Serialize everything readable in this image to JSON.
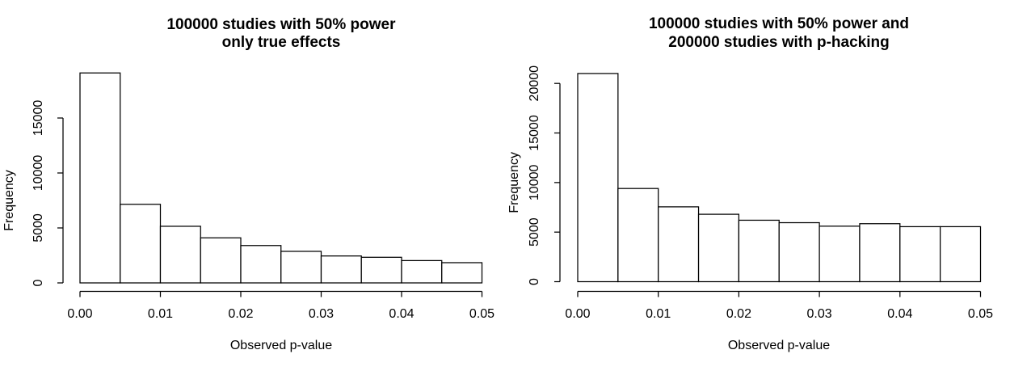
{
  "figure": {
    "background": "#ffffff",
    "line_color": "#000000",
    "text_color": "#000000",
    "bar_fill": "#ffffff"
  },
  "chart_data": [
    {
      "type": "bar",
      "subtype": "histogram",
      "title_lines": [
        "100000 studies with 50% power",
        "only true effects"
      ],
      "xlabel": "Observed p-value",
      "ylabel": "Frequency",
      "xlim": [
        0,
        0.05
      ],
      "ylim": [
        0,
        19500
      ],
      "bin_width": 0.005,
      "bin_edges": [
        0,
        0.005,
        0.01,
        0.015,
        0.02,
        0.025,
        0.03,
        0.035,
        0.04,
        0.045,
        0.05
      ],
      "values": [
        19100,
        7150,
        5150,
        4100,
        3400,
        2870,
        2450,
        2330,
        2030,
        1840
      ],
      "xticks": {
        "values": [
          0,
          0.01,
          0.02,
          0.03,
          0.04,
          0.05
        ],
        "labels": [
          "0.00",
          "0.01",
          "0.02",
          "0.03",
          "0.04",
          "0.05"
        ]
      },
      "yticks": {
        "values": [
          0,
          5000,
          10000,
          15000
        ],
        "labels": [
          "0",
          "5000",
          "10000",
          "15000"
        ]
      },
      "grid": false,
      "legend": "none",
      "bar_fill": "#ffffff",
      "bar_stroke": "#000000"
    },
    {
      "type": "bar",
      "subtype": "histogram",
      "title_lines": [
        "100000 studies with 50% power and",
        "200000 studies with p-hacking"
      ],
      "xlabel": "Observed p-value",
      "ylabel": "Frequency",
      "xlim": [
        0,
        0.05
      ],
      "ylim": [
        0,
        21500
      ],
      "bin_width": 0.005,
      "bin_edges": [
        0,
        0.005,
        0.01,
        0.015,
        0.02,
        0.025,
        0.03,
        0.035,
        0.04,
        0.045,
        0.05
      ],
      "values": [
        21000,
        9400,
        7550,
        6800,
        6200,
        5950,
        5600,
        5850,
        5550,
        5550
      ],
      "xticks": {
        "values": [
          0,
          0.01,
          0.02,
          0.03,
          0.04,
          0.05
        ],
        "labels": [
          "0.00",
          "0.01",
          "0.02",
          "0.03",
          "0.04",
          "0.05"
        ]
      },
      "yticks": {
        "values": [
          0,
          5000,
          10000,
          15000,
          20000
        ],
        "labels": [
          "0",
          "5000",
          "10000",
          "15000",
          "20000"
        ]
      },
      "grid": false,
      "legend": "none",
      "bar_fill": "#ffffff",
      "bar_stroke": "#000000"
    }
  ]
}
